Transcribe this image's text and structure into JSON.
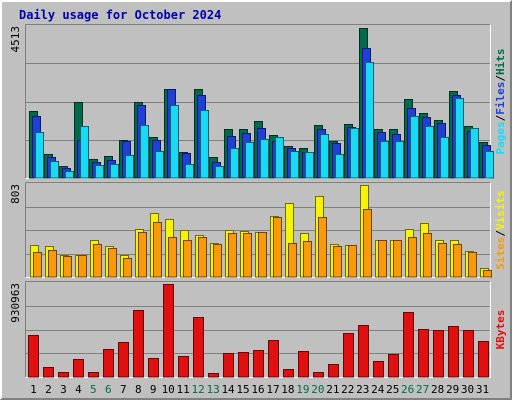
{
  "title": "Daily usage for October 2024",
  "colors": {
    "background": "#c0c0c0",
    "title": "#0000aa",
    "hits": "#006a4d",
    "files": "#1f3fd6",
    "pages": "#19d9f5",
    "visits": "#f7f20a",
    "sites": "#f99a0a",
    "kbytes": "#e01010",
    "weekend_label": "#006a4d",
    "weekday_label": "#000000"
  },
  "chart_data": [
    {
      "type": "bar",
      "title": "Daily usage for October 2024",
      "categories": [
        "1",
        "2",
        "3",
        "4",
        "5",
        "6",
        "7",
        "8",
        "9",
        "10",
        "11",
        "12",
        "13",
        "14",
        "15",
        "16",
        "17",
        "18",
        "19",
        "20",
        "21",
        "22",
        "23",
        "24",
        "25",
        "26",
        "27",
        "28",
        "29",
        "30",
        "31"
      ],
      "weekend_days": [
        "5",
        "6",
        "12",
        "13",
        "19",
        "20",
        "26",
        "27"
      ],
      "ylim": [
        0,
        4513
      ],
      "max_label": "4513",
      "right_label": {
        "pages": "Pages",
        "files": "Files",
        "hits": "Hits",
        "separator": "/"
      },
      "series": [
        {
          "name": "Hits",
          "values": [
            2010,
            730,
            360,
            2260,
            560,
            650,
            1140,
            2280,
            1230,
            2670,
            790,
            2650,
            620,
            1460,
            1450,
            1710,
            1290,
            970,
            900,
            1580,
            1110,
            1620,
            4480,
            1460,
            1460,
            2360,
            1930,
            1740,
            2590,
            1550,
            1070
          ]
        },
        {
          "name": "Files",
          "values": [
            1860,
            630,
            310,
            1140,
            480,
            540,
            1100,
            2180,
            1130,
            2650,
            750,
            2490,
            470,
            1260,
            1330,
            1500,
            1110,
            910,
            790,
            1450,
            1060,
            1510,
            3900,
            1360,
            1320,
            2090,
            1830,
            1640,
            2480,
            1410,
            990
          ]
        },
        {
          "name": "Pages",
          "values": [
            1380,
            520,
            200,
            1540,
            400,
            410,
            700,
            1590,
            820,
            2190,
            420,
            2020,
            350,
            900,
            1080,
            1180,
            1220,
            820,
            790,
            1310,
            720,
            1500,
            3480,
            1100,
            1100,
            1860,
            1560,
            1240,
            2380,
            1490,
            800
          ]
        }
      ]
    },
    {
      "type": "bar",
      "categories": [
        "1",
        "2",
        "3",
        "4",
        "5",
        "6",
        "7",
        "8",
        "9",
        "10",
        "11",
        "12",
        "13",
        "14",
        "15",
        "16",
        "17",
        "18",
        "19",
        "20",
        "21",
        "22",
        "23",
        "24",
        "25",
        "26",
        "27",
        "28",
        "29",
        "30",
        "31"
      ],
      "ylim": [
        0,
        803
      ],
      "max_label": "803",
      "right_label": {
        "sites": "Sites",
        "visits": "Visits",
        "separator": "/"
      },
      "series": [
        {
          "name": "Visits",
          "values": [
            280,
            270,
            190,
            190,
            320,
            270,
            190,
            420,
            560,
            510,
            410,
            370,
            300,
            410,
            400,
            390,
            530,
            650,
            380,
            710,
            290,
            280,
            800,
            320,
            320,
            420,
            470,
            320,
            320,
            230,
            80
          ]
        },
        {
          "name": "Sites",
          "values": [
            220,
            240,
            180,
            190,
            290,
            250,
            170,
            390,
            480,
            350,
            320,
            350,
            290,
            380,
            380,
            390,
            520,
            300,
            310,
            520,
            270,
            280,
            590,
            320,
            320,
            350,
            380,
            300,
            290,
            220,
            60
          ]
        }
      ]
    },
    {
      "type": "bar",
      "categories": [
        "1",
        "2",
        "3",
        "4",
        "5",
        "6",
        "7",
        "8",
        "9",
        "10",
        "11",
        "12",
        "13",
        "14",
        "15",
        "16",
        "17",
        "18",
        "19",
        "20",
        "21",
        "22",
        "23",
        "24",
        "25",
        "26",
        "27",
        "28",
        "29",
        "30",
        "31"
      ],
      "ylim": [
        0,
        930963
      ],
      "max_label": "930963",
      "right_label": {
        "kbytes": "KBytes"
      },
      "series": [
        {
          "name": "KBytes",
          "values": [
            420000,
            100000,
            50000,
            180000,
            50000,
            280000,
            350000,
            670000,
            190000,
            930963,
            210000,
            600000,
            40000,
            240000,
            250000,
            270000,
            370000,
            80000,
            260000,
            50000,
            130000,
            440000,
            520000,
            160000,
            230000,
            650000,
            480000,
            470000,
            510000,
            470000,
            360000
          ]
        }
      ]
    }
  ]
}
